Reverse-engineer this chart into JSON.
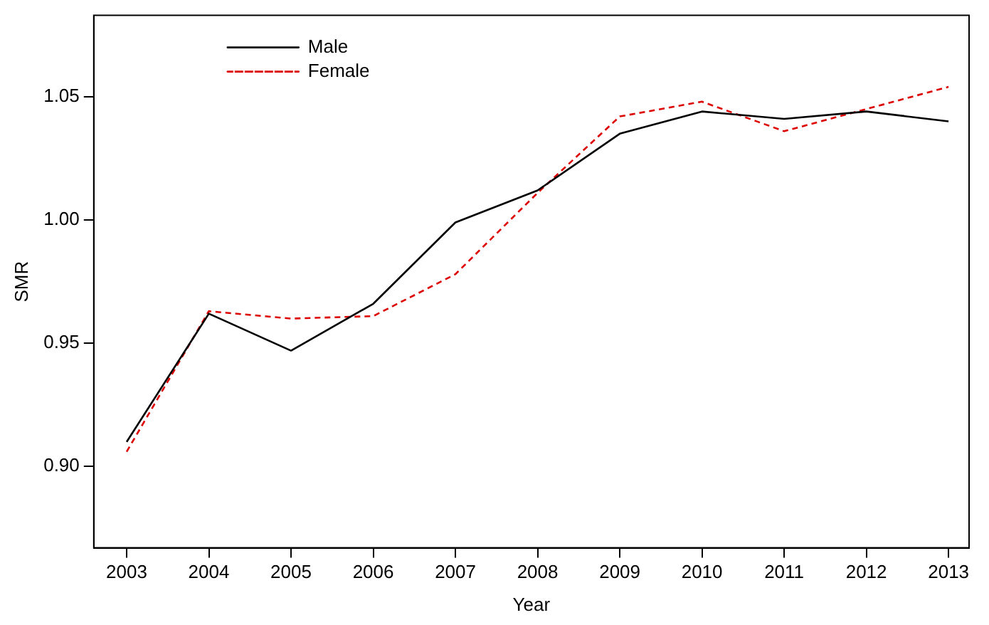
{
  "chart_data": {
    "type": "line",
    "xlabel": "Year",
    "ylabel": "SMR",
    "x": [
      2003,
      2004,
      2005,
      2006,
      2007,
      2008,
      2009,
      2010,
      2011,
      2012,
      2013
    ],
    "series": [
      {
        "name": "Male",
        "color": "#000000",
        "line_style": "solid",
        "values": [
          0.91,
          0.962,
          0.947,
          0.966,
          0.999,
          1.012,
          1.035,
          1.044,
          1.041,
          1.044,
          1.04
        ]
      },
      {
        "name": "Female",
        "color": "#dd0000",
        "line_style": "dashed",
        "values": [
          0.906,
          0.963,
          0.96,
          0.961,
          0.978,
          1.011,
          1.042,
          1.048,
          1.036,
          1.045,
          1.054
        ]
      }
    ],
    "xlim": [
      2002.6,
      2013.25
    ],
    "xticks": [
      2003,
      2004,
      2005,
      2006,
      2007,
      2008,
      2009,
      2010,
      2011,
      2012,
      2013
    ],
    "ylim": [
      0.867,
      1.083
    ],
    "yticks": [
      {
        "value": 0.9,
        "label": "0.90"
      },
      {
        "value": 0.95,
        "label": "0.95"
      },
      {
        "value": 1.0,
        "label": "1.00"
      },
      {
        "value": 1.05,
        "label": "1.05"
      }
    ],
    "grid": false,
    "legend": "top left",
    "marker": "none"
  }
}
